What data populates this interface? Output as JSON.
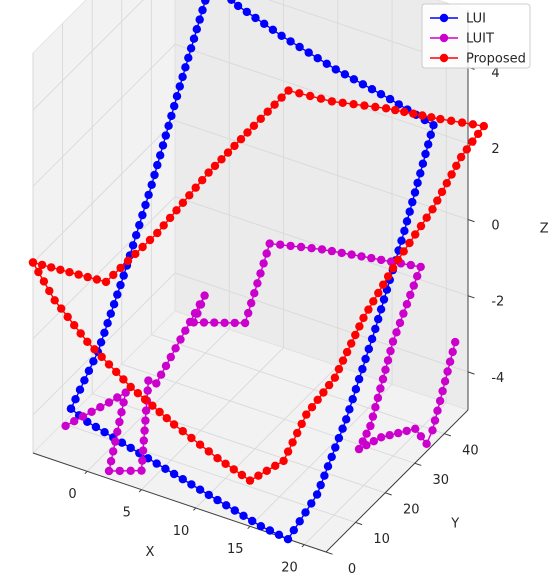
{
  "chart_data": {
    "type": "line",
    "projection": "3d",
    "title": "",
    "xlabel": "X",
    "ylabel": "Y",
    "zlabel": "Z",
    "xlim": [
      -5,
      22
    ],
    "ylim": [
      0,
      48
    ],
    "zlim": [
      -5,
      5.5
    ],
    "xticks": [
      0,
      5,
      10,
      15,
      20
    ],
    "yticks": [
      0,
      10,
      20,
      30,
      40
    ],
    "zticks": [
      -4,
      -2,
      0,
      2,
      4
    ],
    "grid": true,
    "legend_position": "top-right",
    "series": [
      {
        "name": "LUI",
        "color": "#0000ff",
        "marker": "circle",
        "points": [
          [
            -1.5,
            0,
            -3.5
          ],
          [
            0,
            0,
            -3.7
          ],
          [
            4,
            0,
            -4
          ],
          [
            8,
            0,
            -4.3
          ],
          [
            12,
            0,
            -4.6
          ],
          [
            16,
            0,
            -4.9
          ],
          [
            18.5,
            0,
            -5
          ],
          [
            19,
            8,
            -4.4
          ],
          [
            19.5,
            16,
            -3
          ],
          [
            20,
            24,
            -1.2
          ],
          [
            20.5,
            32,
            0.8
          ],
          [
            21,
            40,
            3
          ],
          [
            17,
            40,
            3.3
          ],
          [
            12,
            40,
            3.6
          ],
          [
            7,
            40,
            4
          ],
          [
            3,
            40,
            4.4
          ],
          [
            0.5,
            40,
            4.8
          ],
          [
            -0.2,
            32,
            2.6
          ],
          [
            -0.6,
            24,
            0.6
          ],
          [
            -1,
            16,
            -1.2
          ],
          [
            -1.2,
            8,
            -2.6
          ],
          [
            -1.5,
            0,
            -3.5
          ]
        ]
      },
      {
        "name": "LUIT",
        "color": "#cc00cc",
        "marker": "circle",
        "points": [
          [
            -2,
            0,
            -4
          ],
          [
            2,
            0,
            -3
          ],
          [
            3,
            2,
            -2.8
          ],
          [
            2,
            0,
            -4.8
          ],
          [
            5,
            0,
            -4.5
          ],
          [
            4,
            6,
            -2.7
          ],
          [
            5,
            5,
            -2.6
          ],
          [
            7,
            14,
            -0.8
          ],
          [
            6,
            14,
            -1.6
          ],
          [
            8,
            24,
            -2.2
          ],
          [
            10,
            25,
            0
          ],
          [
            14,
            28,
            0
          ],
          [
            18,
            30,
            0
          ],
          [
            22,
            32,
            0
          ],
          [
            20,
            30,
            -2
          ],
          [
            19,
            26,
            -4
          ],
          [
            18.5,
            24,
            -4.5
          ],
          [
            20,
            26,
            -4.2
          ],
          [
            21.5,
            32,
            -4.3
          ],
          [
            22,
            34,
            -4.8
          ],
          [
            22,
            36,
            -4.6
          ],
          [
            23,
            40,
            -2.5
          ]
        ]
      },
      {
        "name": "Proposed",
        "color": "#ff0000",
        "marker": "circle",
        "points": [
          [
            -5,
            0,
            0
          ],
          [
            -3,
            0,
            -0.8
          ],
          [
            0,
            0,
            -1.6
          ],
          [
            4,
            0,
            -2.4
          ],
          [
            8,
            0,
            -3
          ],
          [
            12,
            0,
            -3.5
          ],
          [
            15,
            0,
            -3.8
          ],
          [
            17,
            4,
            -3.4
          ],
          [
            18,
            8,
            -2.4
          ],
          [
            19,
            14,
            -1.8
          ],
          [
            20,
            20,
            -0.6
          ],
          [
            21,
            28,
            0.4
          ],
          [
            22,
            36,
            1.2
          ],
          [
            23,
            42,
            2.2
          ],
          [
            24,
            46,
            2.8
          ],
          [
            20,
            46,
            2.6
          ],
          [
            15,
            46,
            2.4
          ],
          [
            10,
            46,
            2.1
          ],
          [
            6,
            46,
            2
          ],
          [
            5,
            38,
            1.6
          ],
          [
            3,
            30,
            0.8
          ],
          [
            1,
            20,
            -0.2
          ],
          [
            -1,
            10,
            -0.9
          ],
          [
            -5,
            0,
            0
          ]
        ]
      }
    ]
  }
}
